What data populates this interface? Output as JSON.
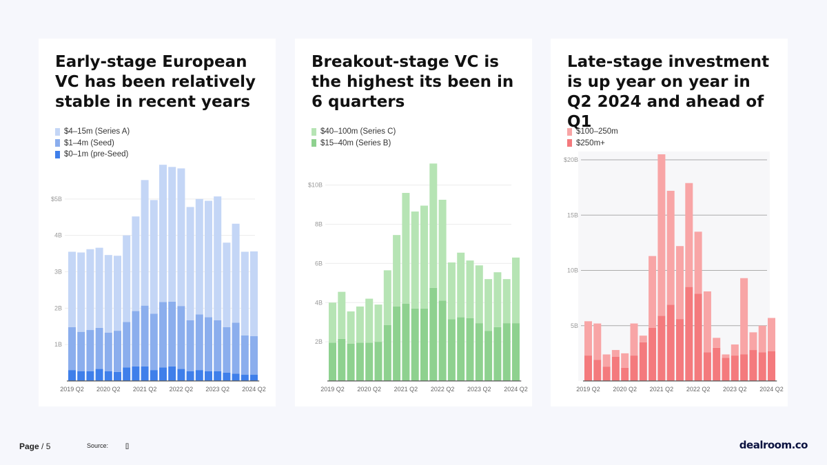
{
  "chart_data": [
    {
      "type": "bar",
      "stacked": true,
      "title": "Early-stage European VC has been relatively stable in recent years",
      "categories": [
        "2019 Q2",
        "2019 Q3",
        "2019 Q4",
        "2020 Q1",
        "2020 Q2",
        "2020 Q3",
        "2020 Q4",
        "2021 Q1",
        "2021 Q2",
        "2021 Q3",
        "2021 Q4",
        "2022 Q1",
        "2022 Q2",
        "2022 Q3",
        "2022 Q4",
        "2023 Q1",
        "2023 Q2",
        "2023 Q3",
        "2023 Q4",
        "2024 Q1",
        "2024 Q2"
      ],
      "xtick_labels": [
        "2019 Q2",
        "2020 Q2",
        "2021 Q2",
        "2022 Q2",
        "2023 Q2",
        "2024 Q2"
      ],
      "xtick_indices": [
        0,
        4,
        8,
        12,
        16,
        20
      ],
      "ytick_labels": [
        "1B",
        "2B",
        "3B",
        "4B",
        "$5B"
      ],
      "ytick_values": [
        1,
        2,
        3,
        4,
        5
      ],
      "ylim": [
        0,
        6
      ],
      "series": [
        {
          "name": "$0–1m (pre-Seed)",
          "color": "#3f7fea",
          "values": [
            0.3,
            0.27,
            0.27,
            0.33,
            0.27,
            0.25,
            0.37,
            0.4,
            0.4,
            0.3,
            0.37,
            0.4,
            0.33,
            0.27,
            0.3,
            0.27,
            0.27,
            0.23,
            0.2,
            0.17,
            0.17
          ]
        },
        {
          "name": "$1–4m (Seed)",
          "color": "#8baeed",
          "values": [
            1.18,
            1.08,
            1.13,
            1.13,
            1.06,
            1.13,
            1.25,
            1.52,
            1.67,
            1.55,
            1.8,
            1.78,
            1.73,
            1.4,
            1.53,
            1.48,
            1.4,
            1.25,
            1.4,
            1.08,
            1.06
          ]
        },
        {
          "name": "$4–15m (Series A)",
          "color": "#c4d6f6",
          "values": [
            2.07,
            2.18,
            2.22,
            2.2,
            2.13,
            2.06,
            2.38,
            2.6,
            3.45,
            3.12,
            3.77,
            3.7,
            3.78,
            3.11,
            3.17,
            3.2,
            3.4,
            2.32,
            2.72,
            2.3,
            2.33
          ]
        }
      ]
    },
    {
      "type": "bar",
      "stacked": true,
      "title": "Breakout-stage VC is the highest its been in 6 quarters",
      "categories": [
        "2019 Q2",
        "2019 Q3",
        "2019 Q4",
        "2020 Q1",
        "2020 Q2",
        "2020 Q3",
        "2020 Q4",
        "2021 Q1",
        "2021 Q2",
        "2021 Q3",
        "2021 Q4",
        "2022 Q1",
        "2022 Q2",
        "2022 Q3",
        "2022 Q4",
        "2023 Q1",
        "2023 Q2",
        "2023 Q3",
        "2023 Q4",
        "2024 Q1",
        "2024 Q2"
      ],
      "xtick_labels": [
        "2019 Q2",
        "2020 Q2",
        "2021 Q2",
        "2022 Q2",
        "2023 Q2",
        "2024 Q2"
      ],
      "xtick_indices": [
        0,
        4,
        8,
        12,
        16,
        20
      ],
      "ytick_labels": [
        "2B",
        "4B",
        "6B",
        "8B",
        "$10B"
      ],
      "ytick_values": [
        2,
        4,
        6,
        8,
        10
      ],
      "ylim": [
        0,
        11.5
      ],
      "series": [
        {
          "name": "$15–40m (Series B)",
          "color": "#8ed18f",
          "values": [
            1.95,
            2.15,
            1.9,
            1.95,
            1.95,
            2.0,
            2.85,
            3.8,
            3.95,
            3.7,
            3.7,
            4.75,
            4.1,
            3.15,
            3.25,
            3.2,
            2.95,
            2.55,
            2.75,
            2.95,
            2.95
          ]
        },
        {
          "name": "$40–100m (Series C)",
          "color": "#b6e4b4",
          "values": [
            2.05,
            2.4,
            1.65,
            1.85,
            2.25,
            1.9,
            2.8,
            3.65,
            5.65,
            4.95,
            5.25,
            6.35,
            5.15,
            2.9,
            3.3,
            2.95,
            2.95,
            2.65,
            2.8,
            2.25,
            3.35
          ]
        }
      ]
    },
    {
      "type": "bar",
      "stacked": true,
      "title": "Late-stage investment is up year on year in Q2 2024 and ahead of Q1",
      "categories": [
        "2019 Q2",
        "2019 Q3",
        "2019 Q4",
        "2020 Q1",
        "2020 Q2",
        "2020 Q3",
        "2020 Q4",
        "2021 Q1",
        "2021 Q2",
        "2021 Q3",
        "2021 Q4",
        "2022 Q1",
        "2022 Q2",
        "2022 Q3",
        "2022 Q4",
        "2023 Q1",
        "2023 Q2",
        "2023 Q3",
        "2023 Q4",
        "2024 Q1",
        "2024 Q2"
      ],
      "xtick_labels": [
        "2019 Q2",
        "2020 Q2",
        "2021 Q2",
        "2022 Q2",
        "2023 Q2",
        "2024 Q2"
      ],
      "xtick_indices": [
        0,
        4,
        8,
        12,
        16,
        20
      ],
      "ytick_labels": [
        "5B",
        "10B",
        "15B",
        "$20B"
      ],
      "ytick_values": [
        5,
        10,
        15,
        20
      ],
      "ylim": [
        0,
        20.5
      ],
      "series": [
        {
          "name": "$250m+",
          "color": "#f47a7d",
          "values": [
            2.3,
            1.9,
            1.3,
            2.2,
            1.2,
            2.3,
            3.5,
            4.8,
            5.9,
            6.9,
            5.6,
            8.5,
            7.9,
            2.6,
            3.0,
            2.1,
            2.3,
            2.4,
            2.8,
            2.6,
            2.7
          ]
        },
        {
          "name": "$100–250m",
          "color": "#f8a5a6",
          "values": [
            3.1,
            3.3,
            1.1,
            0.6,
            1.3,
            2.9,
            0.6,
            6.5,
            14.6,
            10.3,
            6.6,
            9.4,
            5.6,
            5.5,
            0.9,
            0.3,
            1.0,
            6.9,
            1.6,
            2.4,
            3.0
          ]
        }
      ]
    }
  ],
  "panels": [
    {
      "title": "Early-stage European VC has been relatively stable in recent years",
      "legend": [
        {
          "label": "$4–15m (Series A)",
          "color": "#c4d6f6"
        },
        {
          "label": "$1–4m (Seed)",
          "color": "#8baeed"
        },
        {
          "label": "$0–1m (pre-Seed)",
          "color": "#3f7fea"
        }
      ]
    },
    {
      "title": "Breakout-stage VC is the highest its been in 6 quarters",
      "legend": [
        {
          "label": "$40–100m (Series C)",
          "color": "#b6e4b4"
        },
        {
          "label": "$15–40m (Series B)",
          "color": "#8ed18f"
        }
      ]
    },
    {
      "title": "Late-stage investment is up year on year in Q2 2024 and ahead of Q1",
      "legend": [
        {
          "label": "$100–250m",
          "color": "#f8a5a6"
        },
        {
          "label": "$250m+",
          "color": "#f47a7d"
        }
      ]
    }
  ],
  "footer": {
    "page_label": "Page",
    "page_suffix": " / 5",
    "source_label": "Source:",
    "source_value": "[]",
    "brand": "dealroom.co"
  }
}
